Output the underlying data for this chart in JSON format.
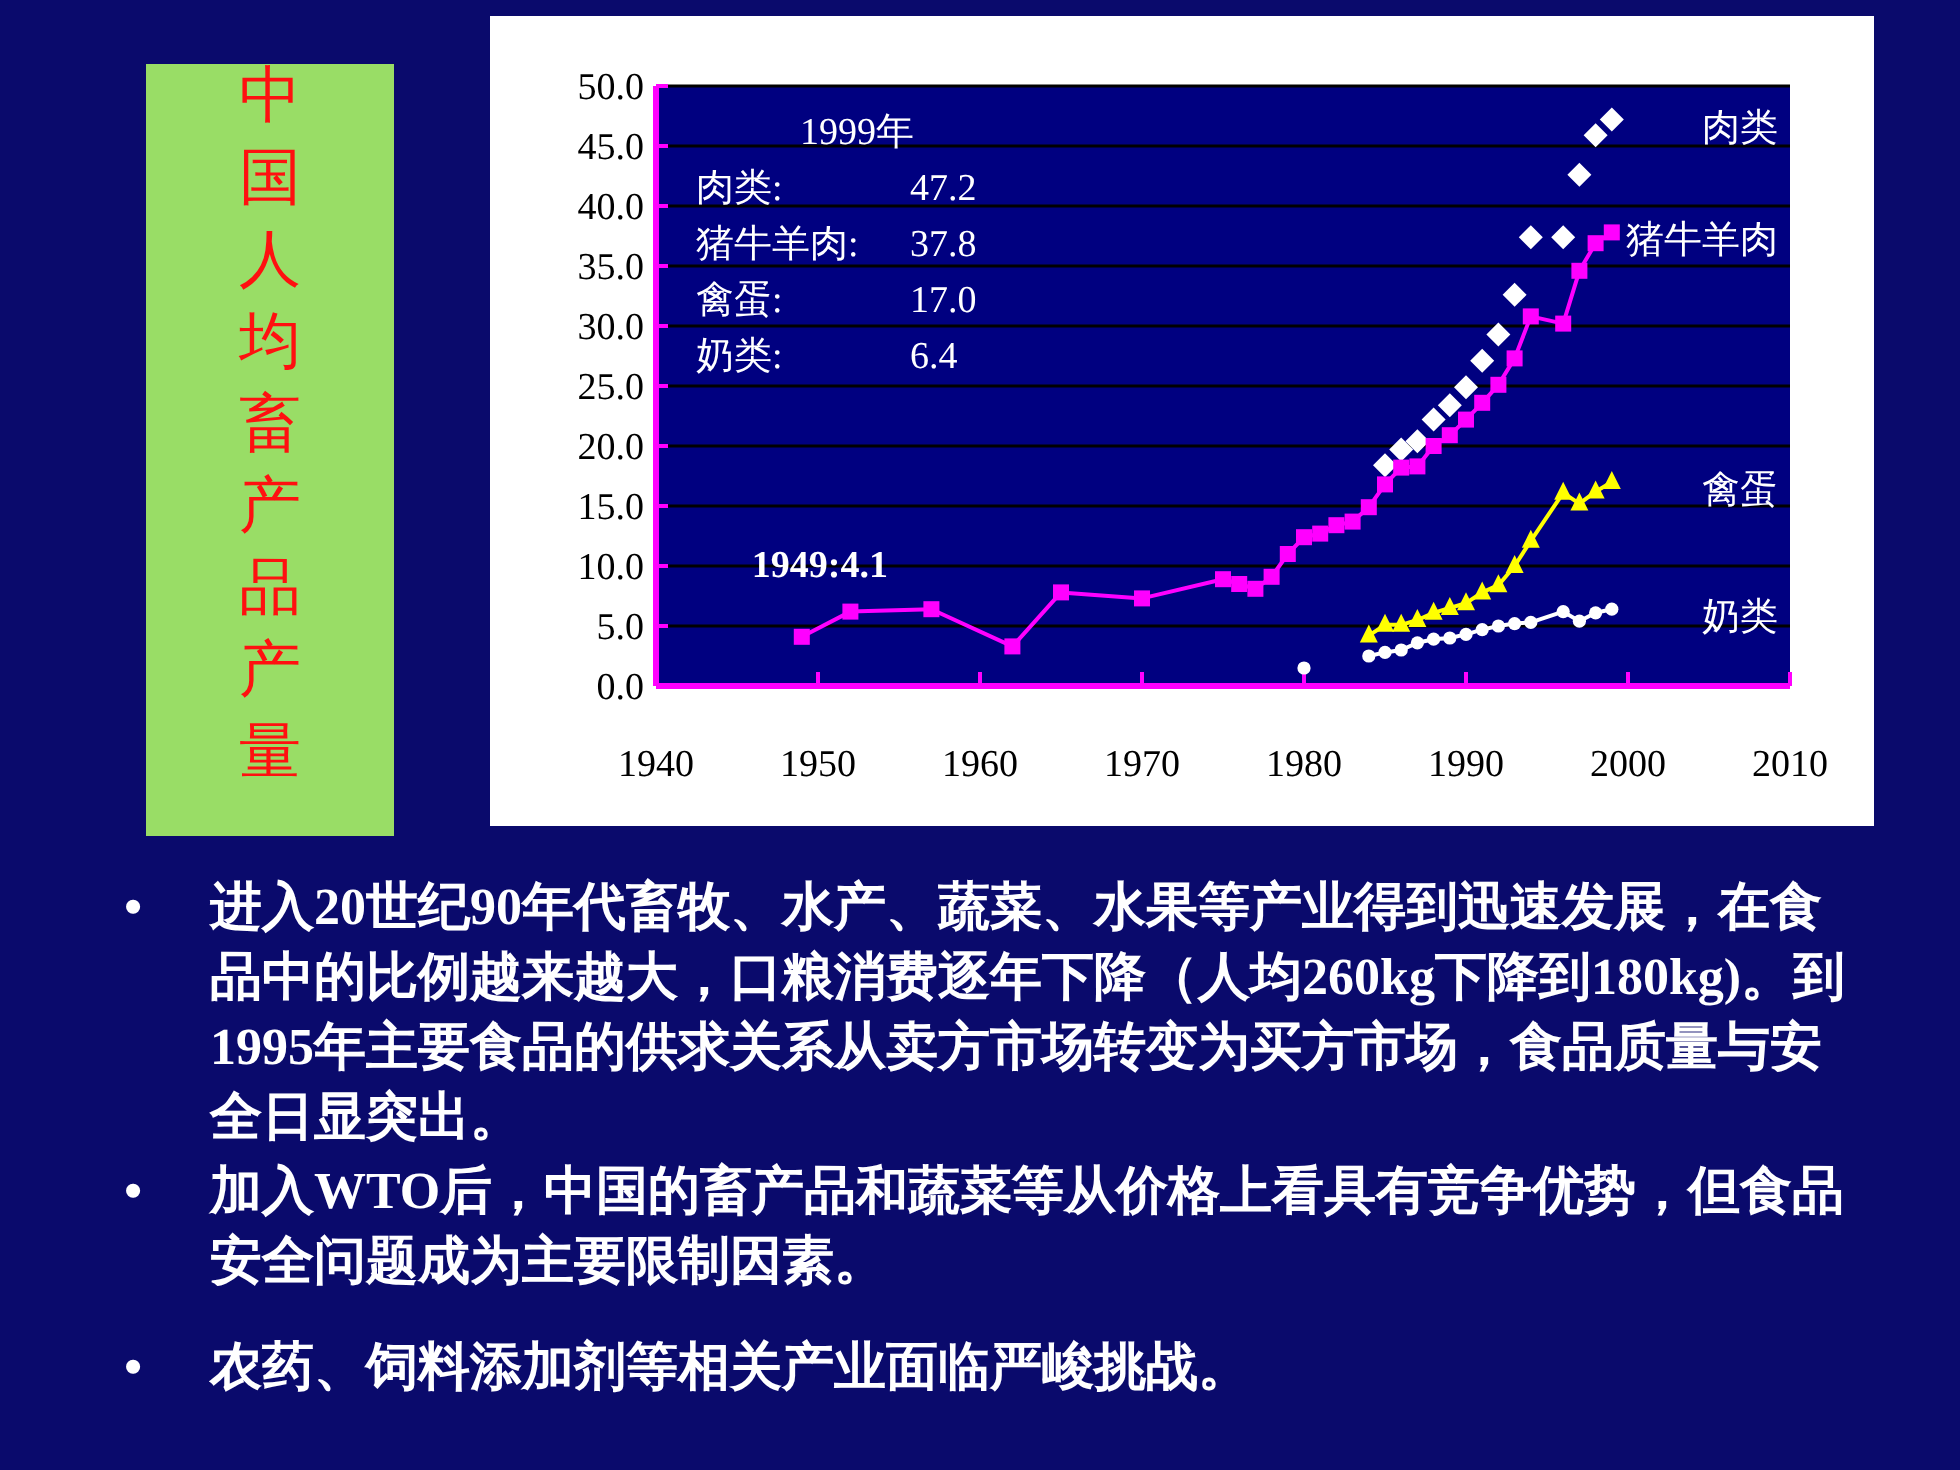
{
  "chart_data": {
    "type": "line",
    "title": "中国人均畜产品产量",
    "xlim": [
      1940,
      2010
    ],
    "xticks": [
      1940,
      1950,
      1960,
      1970,
      1980,
      1990,
      2000,
      2010
    ],
    "ylim": [
      0,
      50
    ],
    "yticks": [
      {
        "value": 0,
        "label": "0.0"
      },
      {
        "value": 5,
        "label": "5.0"
      },
      {
        "value": 10,
        "label": "10.0"
      },
      {
        "value": 15,
        "label": "15.0"
      },
      {
        "value": 20,
        "label": "20.0"
      },
      {
        "value": 25,
        "label": "25.0"
      },
      {
        "value": 30,
        "label": "30.0"
      },
      {
        "value": 35,
        "label": "35.0"
      },
      {
        "value": 40,
        "label": "40.0"
      },
      {
        "value": 45,
        "label": "45.0"
      },
      {
        "value": 50,
        "label": "50.0"
      }
    ],
    "grid": "y",
    "legend": "right",
    "series": [
      {
        "name": "肉类",
        "type": "scatter",
        "marker": "diamond",
        "color": "#ffffff",
        "x": [
          1985,
          1986,
          1987,
          1988,
          1989,
          1990,
          1991,
          1992,
          1993,
          1994,
          1996,
          1997,
          1998,
          1999
        ],
        "values": [
          18.4,
          19.7,
          20.4,
          22.2,
          23.4,
          24.9,
          27.1,
          29.3,
          32.6,
          37.4,
          37.4,
          42.6,
          45.9,
          47.2
        ]
      },
      {
        "name": "猪牛羊肉",
        "marker": "square",
        "color": "#ff00ff",
        "x": [
          1949,
          1952,
          1957,
          1962,
          1965,
          1970,
          1975,
          1976,
          1977,
          1978,
          1979,
          1980,
          1981,
          1982,
          1983,
          1984,
          1985,
          1986,
          1987,
          1988,
          1989,
          1990,
          1991,
          1992,
          1993,
          1994,
          1996,
          1997,
          1998,
          1999
        ],
        "values": [
          4.1,
          6.2,
          6.4,
          3.3,
          7.8,
          7.3,
          8.9,
          8.5,
          8.1,
          9.1,
          11.0,
          12.4,
          12.7,
          13.4,
          13.7,
          14.9,
          16.8,
          18.2,
          18.3,
          20.0,
          20.9,
          22.2,
          23.6,
          25.1,
          27.3,
          30.8,
          30.2,
          34.6,
          36.9,
          37.8
        ]
      },
      {
        "name": "禽蛋",
        "marker": "triangle",
        "color": "#ffff00",
        "x": [
          1984,
          1985,
          1986,
          1987,
          1988,
          1989,
          1990,
          1991,
          1992,
          1993,
          1994,
          1996,
          1997,
          1998,
          1999
        ],
        "values": [
          4.2,
          5.1,
          5.1,
          5.5,
          6.1,
          6.5,
          6.9,
          7.8,
          8.4,
          10.0,
          12.1,
          16.1,
          15.2,
          16.2,
          17.0
        ]
      },
      {
        "name": "奶类",
        "marker": "circle",
        "color": "#ffffff",
        "x": [
          1980,
          1983,
          1984,
          1985,
          1986,
          1987,
          1988,
          1989,
          1990,
          1991,
          1992,
          1993,
          1994,
          1996,
          1997,
          1998,
          1999
        ],
        "values": [
          1.5,
          null,
          2.5,
          2.8,
          3.0,
          3.6,
          3.9,
          4.0,
          4.3,
          4.7,
          5.0,
          5.2,
          5.3,
          6.2,
          5.4,
          6.1,
          6.4
        ]
      }
    ],
    "annotations": [
      "1999年",
      "肉类:\t47.2",
      "猪牛羊肉:\t37.8",
      "禽蛋:\t17.0",
      "奶类:\t6.4",
      {
        "text": "1949:4.1",
        "x": 1949,
        "y": 4.1
      },
      "•\t进入20世纪90年代畜牧、水产、蔬菜、水果等产业得到迅速发展，在食品中的比例越来越大，口粮消费逐年下降（人均260kg下降到180kg)。到1995年主要食品的供求关系从卖方市场转变为买方市场，食品质量与安全日显突出。",
      "•\t加入WTO后，中国的畜产品和蔬菜等从价格上看具有竞争优势，但食品安全问题成为主要限制因素。",
      "•\t农药、饲料添加剂等相关产业面临严峻挑战。"
    ]
  }
}
